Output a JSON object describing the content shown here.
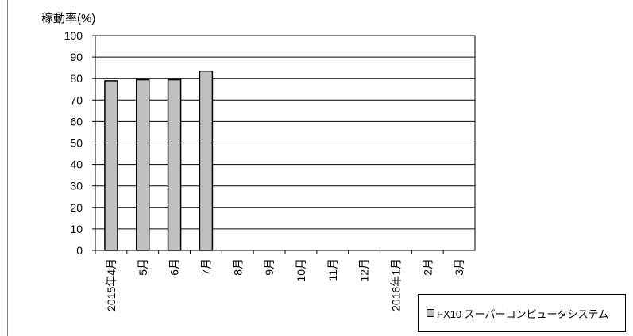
{
  "chart_data": {
    "type": "bar",
    "ylabel": "稼動率(%)",
    "ylim": [
      0,
      100
    ],
    "yticks": [
      0,
      10,
      20,
      30,
      40,
      50,
      60,
      70,
      80,
      90,
      100
    ],
    "grid": true,
    "categories": [
      "2015年4月",
      "5月",
      "6月",
      "7月",
      "8月",
      "9月",
      "10月",
      "11月",
      "12月",
      "2016年1月",
      "2月",
      "3月"
    ],
    "series": [
      {
        "name": "FX10 スーパーコンピュータシステム",
        "values": [
          79,
          79.5,
          79.5,
          83.5,
          null,
          null,
          null,
          null,
          null,
          null,
          null,
          null
        ],
        "color": "#c0c0c0"
      }
    ],
    "legend_position": "bottom-right"
  }
}
